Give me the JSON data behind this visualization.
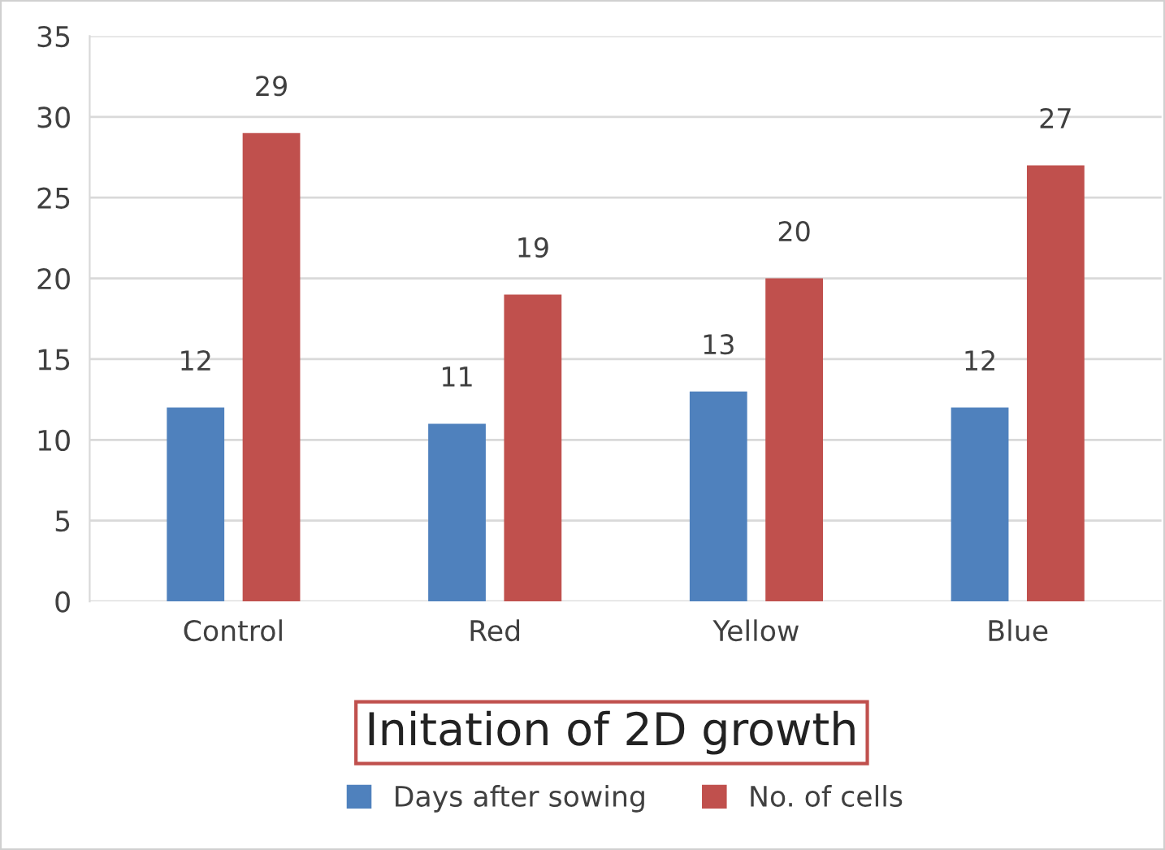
{
  "chart_data": {
    "type": "bar",
    "title": "Initation of 2D growth",
    "categories": [
      "Control",
      "Red",
      "Yellow",
      "Blue"
    ],
    "series": [
      {
        "name": "Days after sowing",
        "color": "#4f81bd",
        "values": [
          12,
          11,
          13,
          12
        ]
      },
      {
        "name": "No. of cells",
        "color": "#c0504d",
        "values": [
          29,
          19,
          20,
          27
        ]
      }
    ],
    "ylim": [
      0,
      35
    ],
    "yticks": [
      0,
      5,
      10,
      15,
      20,
      25,
      30,
      35
    ],
    "grid": "y",
    "legend": "bottom",
    "data_labels": true
  }
}
